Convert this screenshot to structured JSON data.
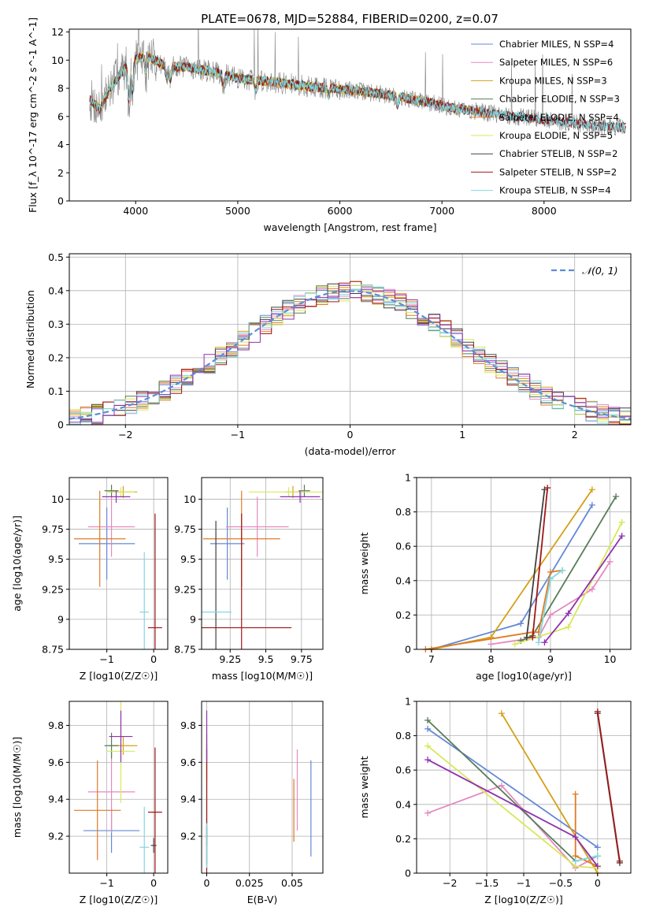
{
  "figure": {
    "title": "PLATE=0678, MJD=52884, FIBERID=0200, z=0.07"
  },
  "colors": {
    "data": "#808080",
    "models": [
      "#6488d8",
      "#e48ac0",
      "#d4a016",
      "#587c58",
      "#e07a24",
      "#d8e85a",
      "#404040",
      "#a01818",
      "#80d8e0"
    ],
    "extra": [
      "#9030b0",
      "#9030b0"
    ]
  },
  "chart_data": [
    {
      "id": "spectrum",
      "type": "line",
      "xlabel": "wavelength [Angstrom, rest frame]",
      "ylabel": "Flux [f_λ 10^-17 erg cm^-2 s^-1 A^-1]",
      "xlim": [
        3350,
        8850
      ],
      "ylim": [
        0,
        12.2
      ],
      "xticks": [
        4000,
        5000,
        6000,
        7000,
        8000
      ],
      "yticks": [
        0,
        2,
        4,
        6,
        8,
        10,
        12
      ],
      "grid": false,
      "legend_position": "top-right",
      "series": [
        {
          "name": "Chabrier MILES, N_SSP=4",
          "wave_range": [
            3550,
            7400
          ]
        },
        {
          "name": "Salpeter MILES, N_SSP=6",
          "wave_range": [
            3550,
            7400
          ]
        },
        {
          "name": "Kroupa MILES, N_SSP=3",
          "wave_range": [
            3550,
            7400
          ]
        },
        {
          "name": "Chabrier ELODIE, N_SSP=3",
          "wave_range": [
            3550,
            6800
          ]
        },
        {
          "name": "Salpeter ELODIE, N_SSP=4",
          "wave_range": [
            3550,
            6800
          ]
        },
        {
          "name": "Kroupa ELODIE, N_SSP=5",
          "wave_range": [
            3550,
            6800
          ]
        },
        {
          "name": "Chabrier STELIB, N_SSP=2",
          "wave_range": [
            3550,
            8800
          ]
        },
        {
          "name": "Salpeter STELIB, N_SSP=2",
          "wave_range": [
            3550,
            8800
          ]
        },
        {
          "name": "Kroupa STELIB, N_SSP=4",
          "wave_range": [
            3550,
            8800
          ]
        }
      ],
      "continuum": [
        [
          3550,
          7.2
        ],
        [
          3650,
          6.5
        ],
        [
          3750,
          8.0
        ],
        [
          3850,
          9.0
        ],
        [
          3950,
          10.0
        ],
        [
          4100,
          10.3
        ],
        [
          4300,
          9.6
        ],
        [
          4500,
          9.5
        ],
        [
          4800,
          9.1
        ],
        [
          5000,
          8.7
        ],
        [
          5300,
          8.5
        ],
        [
          5600,
          8.2
        ],
        [
          5900,
          8.0
        ],
        [
          6200,
          7.8
        ],
        [
          6500,
          7.5
        ],
        [
          6800,
          7.1
        ],
        [
          7100,
          6.6
        ],
        [
          7400,
          6.3
        ],
        [
          7700,
          6.0
        ],
        [
          8000,
          5.8
        ],
        [
          8300,
          5.5
        ],
        [
          8600,
          5.3
        ],
        [
          8800,
          5.2
        ]
      ]
    },
    {
      "id": "residuals",
      "type": "histogram",
      "xlabel": "(data-model)/error",
      "ylabel": "Normed distribution",
      "xlim": [
        -2.5,
        2.5
      ],
      "ylim": [
        0,
        0.51
      ],
      "xticks": [
        -2,
        -1,
        0,
        1,
        2
      ],
      "yticks": [
        0.0,
        0.1,
        0.2,
        0.3,
        0.4,
        0.5
      ],
      "grid": true,
      "legend_position": "top-right",
      "reference": {
        "name": "𝒩(0, 1)",
        "mu": 0,
        "sigma": 1,
        "style": "dashed"
      }
    },
    {
      "id": "age_vs_Z",
      "type": "scatter",
      "xlabel": "Z [log10(Z/Z☉)]",
      "ylabel": "age  [log10(age/yr)]",
      "xlim": [
        -1.8,
        0.3
      ],
      "ylim": [
        8.75,
        10.18
      ],
      "xticks": [
        -1,
        0
      ],
      "yticks": [
        8.75,
        9.0,
        9.25,
        9.5,
        9.75,
        10.0
      ],
      "grid": true,
      "points": [
        {
          "x": -1.0,
          "y": 9.63,
          "xerr": 0.6,
          "yerr": 0.3
        },
        {
          "x": -0.9,
          "y": 9.77,
          "xerr": 0.5,
          "yerr": 0.25
        },
        {
          "x": -0.65,
          "y": 10.06,
          "xerr": 0.3,
          "yerr": 0.05
        },
        {
          "x": -0.9,
          "y": 10.07,
          "xerr": 0.15,
          "yerr": 0.05
        },
        {
          "x": -1.15,
          "y": 9.67,
          "xerr": 0.55,
          "yerr": 0.4
        },
        {
          "x": -0.7,
          "y": 10.06,
          "xerr": 0.3,
          "yerr": 0.04
        },
        {
          "x": 0.0,
          "y": 9.0,
          "xerr": 0.0,
          "yerr": 0.0
        },
        {
          "x": 0.03,
          "y": 8.93,
          "xerr": 0.15,
          "yerr": 0.95
        },
        {
          "x": -0.2,
          "y": 9.06,
          "xerr": 0.1,
          "yerr": 0.5
        },
        {
          "x": -0.8,
          "y": 10.02,
          "xerr": 0.3,
          "yerr": 0.05
        }
      ]
    },
    {
      "id": "age_vs_mass",
      "type": "scatter",
      "xlabel": "mass [log10(M/M☉)]",
      "ylabel": "",
      "xlim": [
        9.05,
        9.9
      ],
      "ylim": [
        8.75,
        10.18
      ],
      "xticks": [
        9.25,
        9.5,
        9.75
      ],
      "yticks": [
        8.75,
        9.0,
        9.25,
        9.5,
        9.75,
        10.0
      ],
      "grid": true,
      "points": [
        {
          "x": 9.23,
          "y": 9.63,
          "xerr": 0.12,
          "yerr": 0.3
        },
        {
          "x": 9.44,
          "y": 9.77,
          "xerr": 0.22,
          "yerr": 0.25
        },
        {
          "x": 9.69,
          "y": 10.06,
          "xerr": 0.05,
          "yerr": 0.05
        },
        {
          "x": 9.77,
          "y": 10.07,
          "xerr": 0.04,
          "yerr": 0.05
        },
        {
          "x": 9.33,
          "y": 9.67,
          "xerr": 0.27,
          "yerr": 0.4
        },
        {
          "x": 9.66,
          "y": 10.06,
          "xerr": 0.28,
          "yerr": 0.04
        },
        {
          "x": 9.15,
          "y": 8.92,
          "xerr": 0.0,
          "yerr": 0.9
        },
        {
          "x": 9.33,
          "y": 8.93,
          "xerr": 0.35,
          "yerr": 0.95
        },
        {
          "x": 9.14,
          "y": 9.06,
          "xerr": 0.12,
          "yerr": 0.0
        },
        {
          "x": 9.74,
          "y": 10.02,
          "xerr": 0.14,
          "yerr": 0.05
        }
      ]
    },
    {
      "id": "weight_vs_age",
      "type": "line",
      "xlabel": "age  [log10(age/yr)]",
      "ylabel": "mass weight",
      "xlim": [
        6.75,
        10.35
      ],
      "ylim": [
        0,
        1.0
      ],
      "xticks": [
        7,
        8,
        9,
        10
      ],
      "yticks": [
        0.0,
        0.2,
        0.4,
        0.6,
        0.8,
        1.0
      ],
      "grid": true,
      "series": [
        {
          "points": [
            [
              7.0,
              0.0
            ],
            [
              8.5,
              0.15
            ],
            [
              9.7,
              0.84
            ]
          ]
        },
        {
          "points": [
            [
              8.0,
              0.03
            ],
            [
              8.8,
              0.07
            ],
            [
              9.0,
              0.2
            ],
            [
              9.7,
              0.35
            ],
            [
              10.0,
              0.51
            ]
          ]
        },
        {
          "points": [
            [
              7.0,
              0.0
            ],
            [
              8.0,
              0.07
            ],
            [
              9.7,
              0.93
            ]
          ]
        },
        {
          "points": [
            [
              8.5,
              0.05
            ],
            [
              8.7,
              0.08
            ],
            [
              10.1,
              0.89
            ]
          ]
        },
        {
          "points": [
            [
              6.9,
              0.0
            ],
            [
              8.7,
              0.1
            ],
            [
              8.8,
              0.1
            ],
            [
              9.0,
              0.45
            ],
            [
              9.2,
              0.46
            ]
          ]
        },
        {
          "points": [
            [
              8.4,
              0.03
            ],
            [
              9.3,
              0.13
            ],
            [
              10.2,
              0.74
            ]
          ]
        },
        {
          "points": [
            [
              8.6,
              0.07
            ],
            [
              8.9,
              0.93
            ]
          ]
        },
        {
          "points": [
            [
              8.7,
              0.07
            ],
            [
              8.95,
              0.94
            ]
          ]
        },
        {
          "points": [
            [
              8.8,
              0.04
            ],
            [
              9.0,
              0.41
            ],
            [
              9.2,
              0.46
            ]
          ]
        },
        {
          "points": [
            [
              8.9,
              0.04
            ],
            [
              9.3,
              0.21
            ],
            [
              10.2,
              0.66
            ]
          ]
        }
      ]
    },
    {
      "id": "mass_vs_Z",
      "type": "scatter",
      "xlabel": "Z [log10(Z/Z☉)]",
      "ylabel": "mass [log10(M/M☉)]",
      "xlim": [
        -1.8,
        0.3
      ],
      "ylim": [
        9.0,
        9.93
      ],
      "xticks": [
        -1,
        0
      ],
      "yticks": [
        9.2,
        9.4,
        9.6,
        9.8
      ],
      "grid": true,
      "points": [
        {
          "x": -0.9,
          "y": 9.23,
          "xerr": 0.6,
          "yerr": 0.12
        },
        {
          "x": -0.9,
          "y": 9.44,
          "xerr": 0.5,
          "yerr": 0.22
        },
        {
          "x": -0.65,
          "y": 9.69,
          "xerr": 0.3,
          "yerr": 0.05
        },
        {
          "x": -0.9,
          "y": 9.69,
          "xerr": 0.15,
          "yerr": 0.07
        },
        {
          "x": -1.2,
          "y": 9.34,
          "xerr": 0.5,
          "yerr": 0.27
        },
        {
          "x": -0.7,
          "y": 9.66,
          "xerr": 0.3,
          "yerr": 0.28
        },
        {
          "x": 0.0,
          "y": 9.15,
          "xerr": 0.06,
          "yerr": 0.04
        },
        {
          "x": 0.03,
          "y": 9.33,
          "xerr": 0.15,
          "yerr": 0.35
        },
        {
          "x": -0.2,
          "y": 9.14,
          "xerr": 0.1,
          "yerr": 0.22
        },
        {
          "x": -0.7,
          "y": 9.74,
          "xerr": 0.25,
          "yerr": 0.14
        }
      ]
    },
    {
      "id": "mass_vs_EBV",
      "type": "scatter",
      "xlabel": "E(B-V)",
      "ylabel": "",
      "xlim": [
        -0.003,
        0.068
      ],
      "ylim": [
        9.0,
        9.93
      ],
      "xticks": [
        0.0,
        0.025,
        0.05
      ],
      "yticks": [
        9.2,
        9.4,
        9.6,
        9.8
      ],
      "grid": true,
      "points": [
        {
          "x": 0.061,
          "y": 9.35,
          "xerr": 0,
          "yerr": 0.26
        },
        {
          "x": 0.053,
          "y": 9.45,
          "xerr": 0,
          "yerr": 0.22
        },
        {
          "x": 0.0,
          "y": 9.6,
          "xerr": 0,
          "yerr": 0.1
        },
        {
          "x": 0.0,
          "y": 9.45,
          "xerr": 0,
          "yerr": 0.3
        },
        {
          "x": 0.051,
          "y": 9.34,
          "xerr": 0,
          "yerr": 0.17
        },
        {
          "x": 0.0,
          "y": 9.7,
          "xerr": 0,
          "yerr": 0.1
        },
        {
          "x": 0.0,
          "y": 9.15,
          "xerr": 0,
          "yerr": 0.1
        },
        {
          "x": 0.0,
          "y": 9.33,
          "xerr": 0,
          "yerr": 0.34
        },
        {
          "x": 0.0,
          "y": 9.15,
          "xerr": 0,
          "yerr": 0.12
        },
        {
          "x": 0.0,
          "y": 9.74,
          "xerr": 0,
          "yerr": 0.14
        }
      ]
    },
    {
      "id": "weight_vs_Z",
      "type": "line",
      "xlabel": "Z [log10(Z/Z☉)]",
      "ylabel": "mass weight",
      "xlim": [
        -2.45,
        0.45
      ],
      "ylim": [
        0,
        1.0
      ],
      "xticks": [
        -2.0,
        -1.5,
        -1.0,
        -0.5,
        0.0
      ],
      "yticks": [
        0.0,
        0.2,
        0.4,
        0.6,
        0.8,
        1.0
      ],
      "grid": true,
      "series": [
        {
          "points": [
            [
              -2.3,
              0.84
            ],
            [
              0.0,
              0.15
            ]
          ]
        },
        {
          "points": [
            [
              -2.3,
              0.35
            ],
            [
              -1.3,
              0.51
            ],
            [
              -0.3,
              0.03
            ],
            [
              0.0,
              0.1
            ]
          ]
        },
        {
          "points": [
            [
              -1.3,
              0.93
            ],
            [
              0.0,
              0.0
            ]
          ]
        },
        {
          "points": [
            [
              -2.3,
              0.89
            ],
            [
              -0.3,
              0.07
            ],
            [
              0.0,
              0.1
            ]
          ]
        },
        {
          "points": [
            [
              -0.3,
              0.46
            ],
            [
              -0.3,
              0.1
            ],
            [
              0.0,
              0.04
            ]
          ]
        },
        {
          "points": [
            [
              -2.3,
              0.74
            ],
            [
              -0.3,
              0.04
            ],
            [
              0.0,
              0.03
            ]
          ]
        },
        {
          "points": [
            [
              0.0,
              0.93
            ],
            [
              0.3,
              0.06
            ]
          ]
        },
        {
          "points": [
            [
              0.0,
              0.94
            ],
            [
              0.3,
              0.07
            ]
          ]
        },
        {
          "points": [
            [
              -0.3,
              0.07
            ],
            [
              0.0,
              0.1
            ]
          ]
        },
        {
          "points": [
            [
              -2.3,
              0.66
            ],
            [
              -0.3,
              0.21
            ],
            [
              0.0,
              0.04
            ]
          ]
        }
      ]
    }
  ]
}
